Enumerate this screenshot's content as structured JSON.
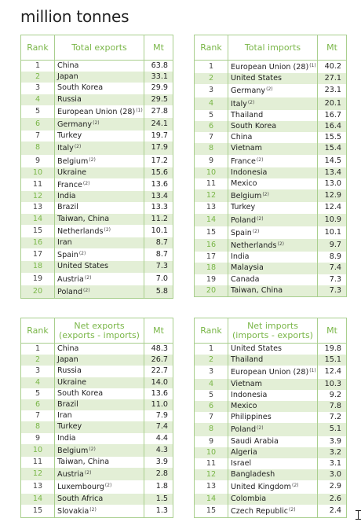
{
  "title": "million tonnes",
  "tables": {
    "exports": {
      "headers": [
        "Rank",
        "Total exports",
        "Mt"
      ],
      "rows": [
        {
          "rank": "1",
          "name": "China",
          "fn": "",
          "val": "63.8"
        },
        {
          "rank": "2",
          "name": "Japan",
          "fn": "",
          "val": "33.1"
        },
        {
          "rank": "3",
          "name": "South Korea",
          "fn": "",
          "val": "29.9"
        },
        {
          "rank": "4",
          "name": "Russia",
          "fn": "",
          "val": "29.5"
        },
        {
          "rank": "5",
          "name": "European Union (28)",
          "fn": "(1)",
          "val": "27.8"
        },
        {
          "rank": "6",
          "name": "Germany",
          "fn": "(2)",
          "val": "24.1"
        },
        {
          "rank": "7",
          "name": "Turkey",
          "fn": "",
          "val": "19.7"
        },
        {
          "rank": "8",
          "name": "Italy",
          "fn": "(2)",
          "val": "17.9"
        },
        {
          "rank": "9",
          "name": "Belgium",
          "fn": "(2)",
          "val": "17.2"
        },
        {
          "rank": "10",
          "name": "Ukraine",
          "fn": "",
          "val": "15.6"
        },
        {
          "rank": "11",
          "name": "France",
          "fn": "(2)",
          "val": "13.6"
        },
        {
          "rank": "12",
          "name": "India",
          "fn": "",
          "val": "13.4"
        },
        {
          "rank": "13",
          "name": "Brazil",
          "fn": "",
          "val": "13.3"
        },
        {
          "rank": "14",
          "name": "Taiwan, China",
          "fn": "",
          "val": "11.2"
        },
        {
          "rank": "15",
          "name": "Netherlands",
          "fn": "(2)",
          "val": "10.1"
        },
        {
          "rank": "16",
          "name": "Iran",
          "fn": "",
          "val": "8.7"
        },
        {
          "rank": "17",
          "name": "Spain",
          "fn": "(2)",
          "val": "8.7"
        },
        {
          "rank": "18",
          "name": "United States",
          "fn": "",
          "val": "7.3"
        },
        {
          "rank": "19",
          "name": "Austria",
          "fn": "(2)",
          "val": "7.0"
        },
        {
          "rank": "20",
          "name": "Poland",
          "fn": "(2)",
          "val": "5.8"
        }
      ]
    },
    "imports": {
      "headers": [
        "Rank",
        "Total imports",
        "Mt"
      ],
      "rows": [
        {
          "rank": "1",
          "name": "European Union (28)",
          "fn": "(1)",
          "val": "40.2"
        },
        {
          "rank": "2",
          "name": "United States",
          "fn": "",
          "val": "27.1"
        },
        {
          "rank": "3",
          "name": "Germany",
          "fn": "(2)",
          "val": "23.1"
        },
        {
          "rank": "4",
          "name": "Italy",
          "fn": "(2)",
          "val": "20.1"
        },
        {
          "rank": "5",
          "name": "Thailand",
          "fn": "",
          "val": "16.7"
        },
        {
          "rank": "6",
          "name": "South Korea",
          "fn": "",
          "val": "16.4"
        },
        {
          "rank": "7",
          "name": "China",
          "fn": "",
          "val": "15.5"
        },
        {
          "rank": "8",
          "name": "Vietnam",
          "fn": "",
          "val": "15.4"
        },
        {
          "rank": "9",
          "name": "France",
          "fn": "(2)",
          "val": "14.5"
        },
        {
          "rank": "10",
          "name": "Indonesia",
          "fn": "",
          "val": "13.4"
        },
        {
          "rank": "11",
          "name": "Mexico",
          "fn": "",
          "val": "13.0"
        },
        {
          "rank": "12",
          "name": "Belgium",
          "fn": "(2)",
          "val": "12.9"
        },
        {
          "rank": "13",
          "name": "Turkey",
          "fn": "",
          "val": "12.4"
        },
        {
          "rank": "14",
          "name": "Poland",
          "fn": "(2)",
          "val": "10.9"
        },
        {
          "rank": "15",
          "name": "Spain",
          "fn": "(2)",
          "val": "10.1"
        },
        {
          "rank": "16",
          "name": "Netherlands",
          "fn": "(2)",
          "val": "9.7"
        },
        {
          "rank": "17",
          "name": "India",
          "fn": "",
          "val": "8.9"
        },
        {
          "rank": "18",
          "name": "Malaysia",
          "fn": "",
          "val": "7.4"
        },
        {
          "rank": "19",
          "name": "Canada",
          "fn": "",
          "val": "7.3"
        },
        {
          "rank": "20",
          "name": "Taiwan, China",
          "fn": "",
          "val": "7.3"
        }
      ]
    },
    "net_exports": {
      "headers": [
        "Rank",
        "Net exports\n(exports - imports)",
        "Mt"
      ],
      "rows": [
        {
          "rank": "1",
          "name": "China",
          "fn": "",
          "val": "48.3"
        },
        {
          "rank": "2",
          "name": "Japan",
          "fn": "",
          "val": "26.7"
        },
        {
          "rank": "3",
          "name": "Russia",
          "fn": "",
          "val": "22.7"
        },
        {
          "rank": "4",
          "name": "Ukraine",
          "fn": "",
          "val": "14.0"
        },
        {
          "rank": "5",
          "name": "South Korea",
          "fn": "",
          "val": "13.6"
        },
        {
          "rank": "6",
          "name": "Brazil",
          "fn": "",
          "val": "11.0"
        },
        {
          "rank": "7",
          "name": "Iran",
          "fn": "",
          "val": "7.9"
        },
        {
          "rank": "8",
          "name": "Turkey",
          "fn": "",
          "val": "7.4"
        },
        {
          "rank": "9",
          "name": "India",
          "fn": "",
          "val": "4.4"
        },
        {
          "rank": "10",
          "name": "Belgium",
          "fn": "(2)",
          "val": "4.3"
        },
        {
          "rank": "11",
          "name": "Taiwan, China",
          "fn": "",
          "val": "3.9"
        },
        {
          "rank": "12",
          "name": "Austria",
          "fn": "(2)",
          "val": "2.8"
        },
        {
          "rank": "13",
          "name": "Luxembourg",
          "fn": "(2)",
          "val": "1.8"
        },
        {
          "rank": "14",
          "name": "South Africa",
          "fn": "",
          "val": "1.5"
        },
        {
          "rank": "15",
          "name": "Slovakia",
          "fn": "(2)",
          "val": "1.3"
        }
      ]
    },
    "net_imports": {
      "headers": [
        "Rank",
        "Net imports\n(imports - exports)",
        "Mt"
      ],
      "rows": [
        {
          "rank": "1",
          "name": "United States",
          "fn": "",
          "val": "19.8"
        },
        {
          "rank": "2",
          "name": "Thailand",
          "fn": "",
          "val": "15.1"
        },
        {
          "rank": "3",
          "name": "European Union (28)",
          "fn": "(1)",
          "val": "12.4"
        },
        {
          "rank": "4",
          "name": "Vietnam",
          "fn": "",
          "val": "10.3"
        },
        {
          "rank": "5",
          "name": "Indonesia",
          "fn": "",
          "val": "9.2"
        },
        {
          "rank": "6",
          "name": "Mexico",
          "fn": "",
          "val": "7.8"
        },
        {
          "rank": "7",
          "name": "Philippines",
          "fn": "",
          "val": "7.2"
        },
        {
          "rank": "8",
          "name": "Poland",
          "fn": "(2)",
          "val": "5.1"
        },
        {
          "rank": "9",
          "name": "Saudi Arabia",
          "fn": "",
          "val": "3.9"
        },
        {
          "rank": "10",
          "name": "Algeria",
          "fn": "",
          "val": "3.2"
        },
        {
          "rank": "11",
          "name": "Israel",
          "fn": "",
          "val": "3.1"
        },
        {
          "rank": "12",
          "name": "Bangladesh",
          "fn": "",
          "val": "3.0"
        },
        {
          "rank": "13",
          "name": "United Kingdom",
          "fn": "(2)",
          "val": "2.9"
        },
        {
          "rank": "14",
          "name": "Colombia",
          "fn": "",
          "val": "2.6"
        },
        {
          "rank": "15",
          "name": "Czech Republic",
          "fn": "(2)",
          "val": "2.4"
        }
      ]
    }
  },
  "colors": {
    "accent": "#7ab648",
    "row_band": "#e3efd6",
    "border": "#a9cf8e"
  }
}
